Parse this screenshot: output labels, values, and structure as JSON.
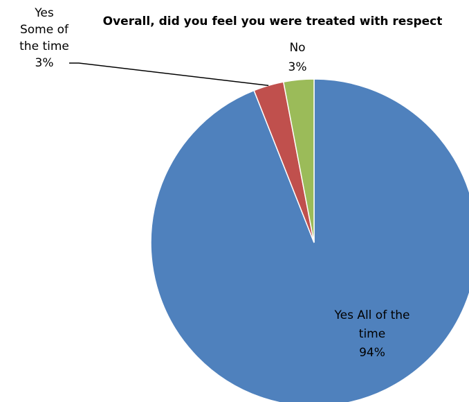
{
  "chart_data": {
    "type": "pie",
    "title": "Overall, did you feel you were treated with respect",
    "categories": [
      "Yes All of the time",
      "Yes Some of the time",
      "No"
    ],
    "values": [
      94,
      3,
      3
    ],
    "value_labels": [
      "94%",
      "3%",
      "3%"
    ],
    "label_lines": [
      [
        "Yes All of the",
        "time",
        "94%"
      ],
      [
        "Yes",
        "Some of",
        "the time",
        "3%"
      ],
      [
        "No",
        "3%"
      ]
    ],
    "colors": [
      "#4F81BD",
      "#C0504D",
      "#9BBB59"
    ],
    "start_angle": "12 o'clock",
    "direction": "clockwise",
    "legend": "none"
  }
}
